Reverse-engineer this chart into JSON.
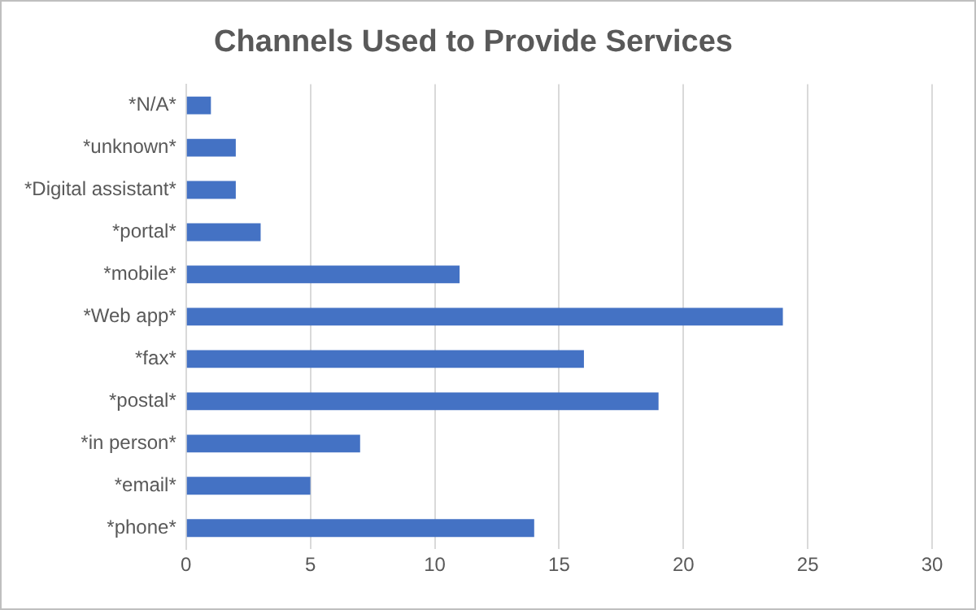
{
  "chart_data": {
    "type": "bar",
    "orientation": "horizontal",
    "title": "Channels Used to Provide Services",
    "categories": [
      "*N/A*",
      "*unknown*",
      "*Digital assistant*",
      "*portal*",
      "*mobile*",
      "*Web app*",
      "*fax*",
      "*postal*",
      "*in person*",
      "*email*",
      "*phone*"
    ],
    "values": [
      1,
      2,
      2,
      3,
      11,
      24,
      16,
      19,
      7,
      5,
      14
    ],
    "color": "#4472c4",
    "xlim": [
      0,
      30
    ],
    "xticks": [
      0,
      5,
      10,
      15,
      20,
      25,
      30
    ],
    "grid": "x",
    "legend": false
  }
}
